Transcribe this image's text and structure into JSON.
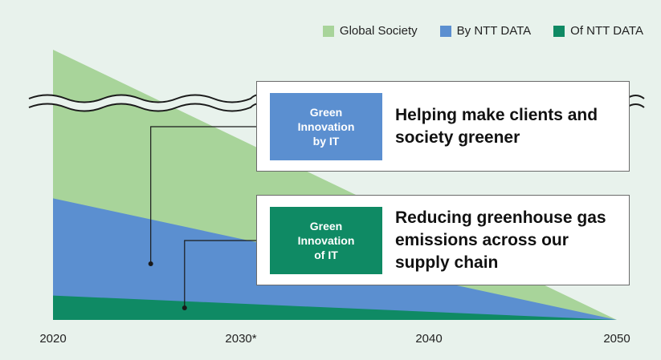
{
  "chart_data": {
    "type": "area",
    "x": [
      2020,
      2050
    ],
    "x_ticks": [
      "2020",
      "2030*",
      "2040",
      "2050"
    ],
    "xlim": [
      2020,
      2050
    ],
    "y_axis_broken": true,
    "series": [
      {
        "name": "Global Society",
        "color": "#a8d49a",
        "start": 1.0,
        "end": 0.0
      },
      {
        "name": "By NTT DATA",
        "color": "#5b8fd0",
        "start": 0.45,
        "end": 0.0
      },
      {
        "name": "Of NTT DATA",
        "color": "#0f8a64",
        "start": 0.09,
        "end": 0.0
      }
    ],
    "legend_position": "top-right",
    "callouts": [
      {
        "tag": "Green\nInnovation\nby IT",
        "tag_color": "#5b8fd0",
        "text": "Helping make clients and\nsociety greener",
        "points_to": "By NTT DATA",
        "anchor_year": 2025.2
      },
      {
        "tag": "Green\nInnovation\nof IT",
        "tag_color": "#0f8a64",
        "text": "Reducing greenhouse gas\nemissions across our\nsupply chain",
        "points_to": "Of NTT DATA",
        "anchor_year": 2027.0
      }
    ]
  }
}
